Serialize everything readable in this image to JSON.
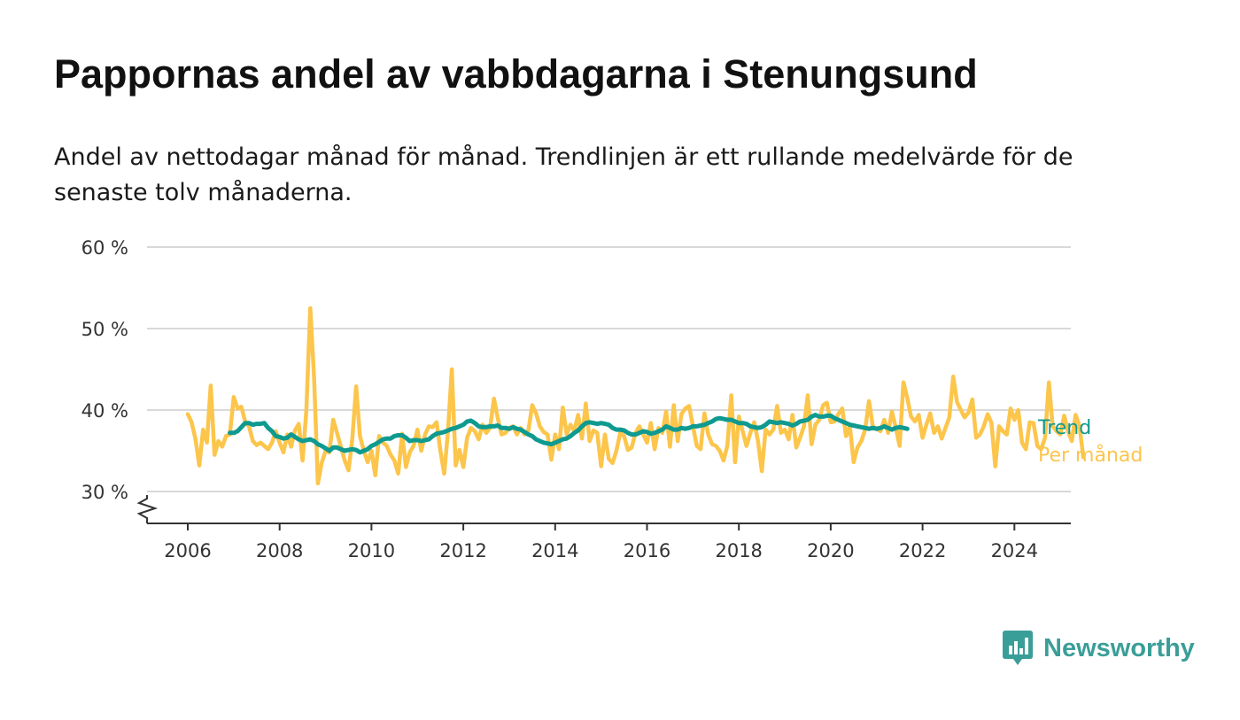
{
  "title": "Pappornas andel av vabbdagarna i Stenungsund",
  "subtitle": "Andel av nettodagar månad för månad. Trendlinjen är ett rullande medelvärde för de senaste tolv månaderna.",
  "brand": {
    "name": "Newsworthy",
    "icon": "newsworthy-logo-icon",
    "color": "#3a9e98"
  },
  "colors": {
    "trend": "#0f9a90",
    "monthly": "#fcc54b",
    "grid": "#d9d9d9",
    "axis": "#333333"
  },
  "chart_data": {
    "type": "line",
    "title": "Pappornas andel av vabbdagarna i Stenungsund",
    "xlim": [
      "2005-04",
      "2025-05"
    ],
    "ylim": [
      26,
      60
    ],
    "y_ticks": [
      30,
      40,
      50,
      60
    ],
    "y_tick_labels": [
      "30 %",
      "40 %",
      "50 %",
      "60 %"
    ],
    "x_ticks": [
      2006,
      2008,
      2010,
      2012,
      2014,
      2016,
      2018,
      2020,
      2022,
      2024
    ],
    "x_tick_labels": [
      "2006",
      "2008",
      "2010",
      "2012",
      "2014",
      "2016",
      "2018",
      "2020",
      "2022",
      "2024"
    ],
    "grid": true,
    "legend": "right-end labels",
    "series": [
      {
        "name": "Per månad",
        "start": "2006-01",
        "values": [
          39.5,
          38.5,
          36.5,
          33.2,
          37.6,
          36.0,
          43.0,
          34.5,
          36.2,
          35.5,
          36.8,
          37.0,
          41.6,
          40.2,
          40.4,
          38.6,
          38.0,
          36.2,
          35.7,
          36.0,
          35.6,
          35.2,
          36.0,
          37.4,
          36.0,
          34.8,
          37.0,
          35.5,
          37.5,
          38.3,
          33.8,
          40.0,
          52.5,
          44.0,
          31.0,
          33.5,
          35.0,
          34.8,
          38.8,
          37.2,
          35.5,
          33.8,
          32.6,
          36.5,
          42.9,
          36.8,
          35.0,
          33.6,
          35.0,
          32.0,
          36.8,
          36.0,
          35.6,
          34.5,
          33.8,
          32.2,
          37.1,
          33.0,
          34.8,
          35.6,
          37.6,
          35.0,
          37.0,
          38.0,
          37.9,
          38.5,
          35.0,
          32.2,
          37.4,
          45.0,
          33.2,
          35.1,
          33.0,
          36.6,
          37.8,
          37.4,
          36.4,
          38.2,
          37.2,
          37.8,
          41.4,
          39.0,
          37.0,
          37.2,
          37.8,
          38.0,
          37.0,
          37.8,
          37.0,
          37.5,
          40.6,
          39.6,
          38.0,
          37.3,
          37.0,
          33.9,
          37.0,
          35.2,
          40.3,
          37.0,
          38.2,
          37.4,
          39.4,
          36.5,
          40.8,
          36.2,
          37.5,
          37.2,
          33.1,
          37.0,
          34.0,
          33.5,
          35.0,
          37.2,
          36.8,
          35.1,
          35.4,
          37.2,
          38.0,
          37.0,
          36.0,
          38.4,
          35.2,
          37.8,
          37.2,
          39.8,
          35.5,
          40.6,
          36.2,
          39.5,
          40.2,
          40.5,
          38.0,
          35.6,
          35.2,
          39.6,
          37.0,
          35.8,
          35.6,
          35.0,
          33.8,
          35.6,
          41.8,
          33.6,
          39.2,
          37.4,
          35.6,
          37.2,
          38.5,
          36.2,
          32.5,
          37.6,
          37.0,
          37.6,
          40.5,
          37.2,
          37.6,
          36.4,
          39.4,
          35.4,
          36.6,
          38.0,
          41.8,
          35.8,
          38.2,
          38.8,
          40.6,
          40.9,
          38.5,
          38.6,
          39.5,
          40.2,
          36.8,
          38.0,
          33.6,
          35.4,
          36.2,
          37.6,
          41.1,
          38.0,
          37.7,
          37.4,
          38.8,
          37.2,
          39.8,
          37.8,
          35.6,
          43.4,
          41.5,
          39.2,
          38.6,
          39.4,
          36.6,
          38.2,
          39.6,
          37.2,
          38.0,
          36.5,
          37.8,
          39.1,
          44.1,
          41.0,
          40.0,
          39.1,
          39.7,
          41.3,
          36.6,
          37.0,
          38.0,
          39.5,
          38.4,
          33.1,
          38.0,
          37.4,
          37.0,
          40.2,
          38.8,
          40.0,
          36.0,
          35.2,
          38.5,
          38.4,
          35.6,
          35.2,
          36.6,
          43.4,
          38.0,
          37.4,
          37.0,
          39.3,
          37.4,
          36.2,
          39.4,
          38.0,
          34.2
        ]
      },
      {
        "name": "Trend",
        "start": "2006-12",
        "values": [
          37.2,
          37.2,
          37.4,
          37.9,
          38.4,
          38.4,
          38.2,
          38.3,
          38.3,
          38.4,
          37.8,
          37.4,
          36.8,
          36.7,
          36.5,
          36.6,
          37.0,
          36.7,
          36.4,
          36.2,
          36.3,
          36.4,
          36.2,
          35.8,
          35.6,
          35.3,
          35.0,
          35.4,
          35.4,
          35.2,
          35.0,
          35.1,
          35.2,
          35.1,
          34.8,
          35.0,
          35.2,
          35.6,
          35.8,
          36.1,
          36.4,
          36.5,
          36.5,
          36.8,
          36.9,
          36.9,
          36.6,
          36.2,
          36.3,
          36.3,
          36.2,
          36.3,
          36.4,
          36.8,
          37.1,
          37.2,
          37.3,
          37.5,
          37.7,
          37.8,
          38.0,
          38.2,
          38.6,
          38.7,
          38.4,
          38.0,
          37.9,
          37.9,
          38.0,
          38.0,
          38.1,
          37.8,
          37.8,
          37.7,
          37.9,
          37.7,
          37.6,
          37.3,
          37.0,
          36.8,
          36.4,
          36.2,
          36.0,
          35.9,
          35.8,
          36.0,
          36.2,
          36.4,
          36.5,
          36.8,
          37.2,
          37.5,
          38.0,
          38.4,
          38.5,
          38.4,
          38.3,
          38.4,
          38.3,
          38.2,
          37.8,
          37.6,
          37.6,
          37.5,
          37.2,
          37.0,
          37.0,
          37.2,
          37.4,
          37.3,
          37.1,
          37.2,
          37.4,
          37.6,
          38.0,
          37.8,
          37.6,
          37.6,
          37.8,
          37.7,
          37.8,
          38.0,
          38.0,
          38.1,
          38.2,
          38.4,
          38.6,
          38.9,
          39.0,
          38.9,
          38.8,
          38.8,
          38.6,
          38.4,
          38.4,
          38.3,
          38.0,
          37.9,
          37.8,
          37.9,
          38.2,
          38.6,
          38.5,
          38.4,
          38.5,
          38.4,
          38.3,
          38.1,
          38.3,
          38.6,
          38.7,
          38.8,
          39.2,
          39.4,
          39.2,
          39.2,
          39.3,
          39.3,
          39.0,
          38.8,
          38.6,
          38.4,
          38.2,
          38.1,
          38.0,
          37.9,
          37.8,
          37.7,
          37.8,
          37.7,
          37.8,
          38.0,
          37.8,
          37.6,
          37.8,
          37.9,
          37.8,
          37.7
        ]
      }
    ]
  }
}
